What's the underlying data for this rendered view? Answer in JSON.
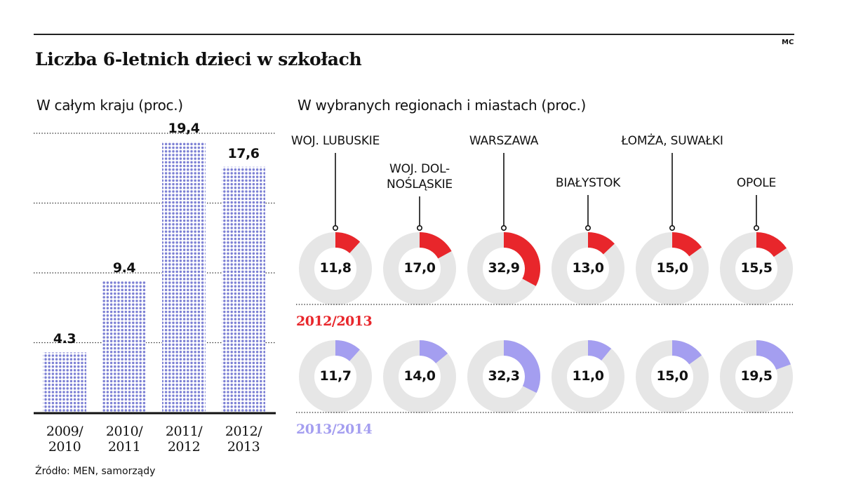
{
  "header": {
    "title": "Liczba 6-letnich dzieci w szkołach",
    "author": "MC",
    "source": "Źródło: MEN, samorządy"
  },
  "chart_data": [
    {
      "type": "bar",
      "title": "W całym kraju (proc.)",
      "categories": [
        "2009/ 2010",
        "2010/ 2011",
        "2011/ 2012",
        "2012/ 2013"
      ],
      "category_lines": [
        [
          "2009/",
          "2010"
        ],
        [
          "2010/",
          "2011"
        ],
        [
          "2011/",
          "2012"
        ],
        [
          "2012/",
          "2013"
        ]
      ],
      "values": [
        4.3,
        9.4,
        19.4,
        17.6
      ],
      "value_labels": [
        "4.3",
        "9.4",
        "19,4",
        "17,6"
      ],
      "ylim": [
        0,
        20
      ],
      "grid": true,
      "bar_color": "#7b7fd4"
    },
    {
      "type": "pie",
      "title": "W wybranych regionach i miastach (proc.)",
      "categories": [
        "WOJ. LUBUSKIE",
        "WOJ. DOLNOŚLĄSKIE",
        "WARSZAWA",
        "BIAŁYSTOK",
        "ŁOMŻA, SUWAŁKI",
        "OPOLE"
      ],
      "category_lines": [
        [
          "WOJ. LUBUSKIE"
        ],
        [
          "WOJ. DOL-",
          "NOŚLĄSKIE"
        ],
        [
          "WARSZAWA"
        ],
        [
          "BIAŁYSTOK"
        ],
        [
          "ŁOMŻA, SUWAŁKI"
        ],
        [
          "OPOLE"
        ]
      ],
      "series": [
        {
          "name": "2012/2013",
          "color": "#e8262b",
          "values": [
            11.8,
            17.0,
            32.9,
            13.0,
            15.0,
            15.5
          ],
          "value_labels": [
            "11,8",
            "17,0",
            "32,9",
            "13,0",
            "15,0",
            "15,5"
          ]
        },
        {
          "name": "2013/2014",
          "color": "#a49ef0",
          "values": [
            11.7,
            14.0,
            32.3,
            11.0,
            15.0,
            19.5
          ],
          "value_labels": [
            "11,7",
            "14,0",
            "32,3",
            "11,0",
            "15,0",
            "19,5"
          ]
        }
      ],
      "ring_color": "#e6e6e6"
    }
  ]
}
